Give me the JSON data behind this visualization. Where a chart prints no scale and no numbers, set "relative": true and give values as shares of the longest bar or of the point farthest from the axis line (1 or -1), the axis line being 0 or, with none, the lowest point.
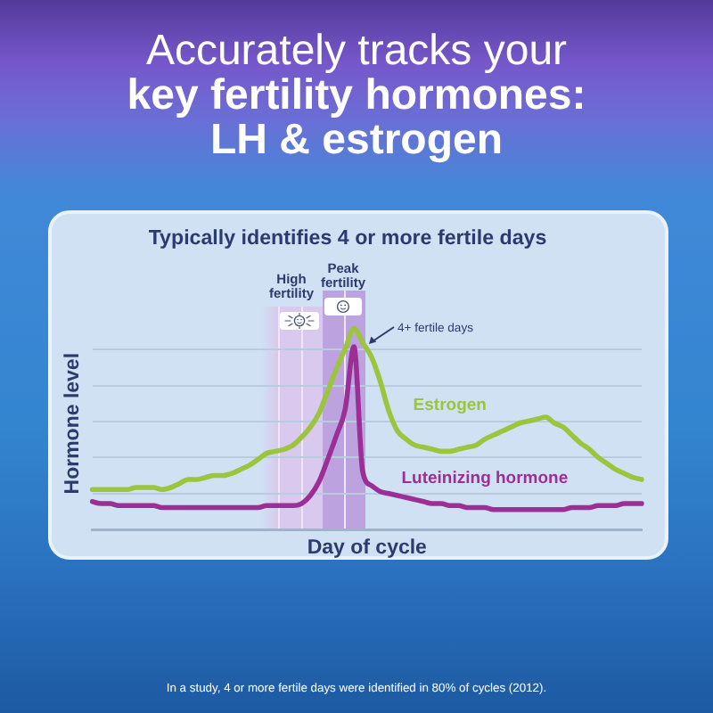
{
  "chart_data": {
    "type": "line",
    "title": "Accurately tracks your\nkey fertility hormones:\nLH & estrogen",
    "subtitle": "Typically identifies 4 or more fertile days",
    "xlabel": "Day of cycle",
    "ylabel": "Hormone level",
    "annotations": [
      "High fertility",
      "Peak fertility",
      "4+ fertile days",
      "In a study, 4 or more fertile days were identified in 80% of cycles (2012)."
    ],
    "categories": [
      null,
      null,
      null,
      null,
      null,
      null,
      null,
      null,
      null,
      null,
      null,
      null,
      null,
      null,
      null,
      null,
      null,
      null,
      null,
      null,
      null,
      null,
      null,
      null,
      null,
      null,
      null,
      null,
      null,
      null,
      null,
      null,
      null,
      null,
      null,
      null,
      null,
      null,
      null,
      null,
      null,
      null,
      null,
      null,
      null,
      null,
      null,
      null,
      null,
      null,
      null,
      null,
      null,
      null,
      null,
      null,
      null,
      null,
      null,
      null,
      null,
      null,
      null,
      null
    ],
    "series": [
      {
        "name": "Estrogen",
        "color": "#9cc43c",
        "values": [
          0.2,
          0.2,
          0.2,
          0.2,
          0.2,
          0.21,
          0.21,
          0.21,
          0.2,
          0.21,
          0.23,
          0.25,
          0.25,
          0.26,
          0.27,
          0.27,
          0.28,
          0.3,
          0.32,
          0.35,
          0.38,
          0.39,
          0.4,
          0.42,
          0.46,
          0.51,
          0.58,
          0.69,
          0.8,
          0.9,
          1,
          0.93,
          0.86,
          0.74,
          0.59,
          0.49,
          0.45,
          0.42,
          0.41,
          0.4,
          0.39,
          0.39,
          0.4,
          0.41,
          0.42,
          0.45,
          0.47,
          0.49,
          0.51,
          0.53,
          0.54,
          0.55,
          0.56,
          0.53,
          0.51,
          0.47,
          0.43,
          0.4,
          0.36,
          0.33,
          0.3,
          0.28,
          0.26,
          0.25
        ]
      },
      {
        "name": "Luteinizing hormone",
        "color": "#9c2f96",
        "values": [
          0.14,
          0.13,
          0.13,
          0.12,
          0.12,
          0.12,
          0.12,
          0.12,
          0.11,
          0.11,
          0.11,
          0.11,
          0.11,
          0.11,
          0.11,
          0.11,
          0.11,
          0.11,
          0.11,
          0.11,
          0.12,
          0.12,
          0.12,
          0.12,
          0.13,
          0.17,
          0.24,
          0.35,
          0.47,
          0.6,
          0.91,
          0.29,
          0.22,
          0.19,
          0.18,
          0.17,
          0.16,
          0.15,
          0.14,
          0.13,
          0.13,
          0.12,
          0.12,
          0.11,
          0.11,
          0.11,
          0.1,
          0.1,
          0.1,
          0.1,
          0.1,
          0.1,
          0.1,
          0.1,
          0.1,
          0.11,
          0.11,
          0.11,
          0.12,
          0.12,
          0.12,
          0.13,
          0.13,
          0.13
        ]
      }
    ],
    "relative": true,
    "grid": "y",
    "legend": false,
    "marker": "none",
    "line_style": "solid"
  }
}
